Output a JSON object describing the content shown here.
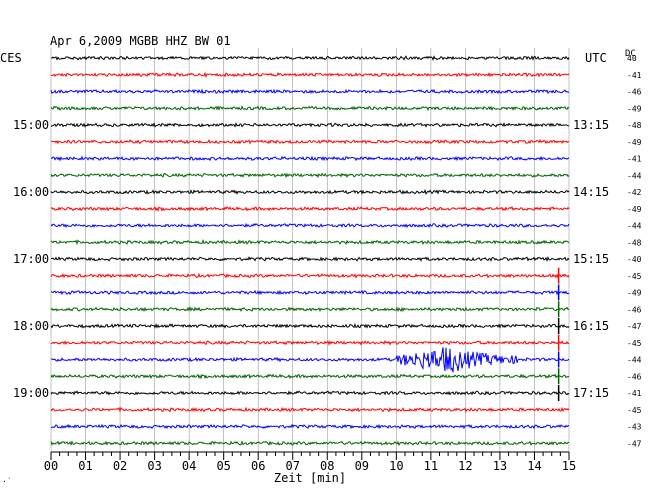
{
  "header": {
    "title": "Apr 6,2009   MGBB HHZ BW 01",
    "left_zone": "CES",
    "right_zone": "UTC",
    "offset_label": "DC"
  },
  "footer": {
    "x_title": "Zeit [min]",
    "corner_mark": "·˙"
  },
  "colors": {
    "trace_cycle": [
      "#000000",
      "#ff0000",
      "#0000ff",
      "#006400"
    ],
    "grid": "#999999"
  },
  "chart_data": {
    "type": "line",
    "title": "Apr 6,2009   MGBB HHZ BW 01",
    "xlabel": "Zeit [min]",
    "ylabel": "",
    "xlim": [
      0,
      15
    ],
    "x_ticks": [
      "00",
      "01",
      "02",
      "03",
      "04",
      "05",
      "06",
      "07",
      "08",
      "09",
      "10",
      "11",
      "12",
      "13",
      "14",
      "15"
    ],
    "minor_ticks_per_minute": 4,
    "line_count": 24,
    "minutes_per_line": 15,
    "left_time_labels": [
      {
        "line": 4,
        "label": "15:00"
      },
      {
        "line": 8,
        "label": "16:00"
      },
      {
        "line": 12,
        "label": "17:00"
      },
      {
        "line": 16,
        "label": "18:00"
      },
      {
        "line": 20,
        "label": "19:00"
      }
    ],
    "right_time_labels": [
      {
        "line": 4,
        "label": "13:15"
      },
      {
        "line": 8,
        "label": "14:15"
      },
      {
        "line": 12,
        "label": "15:15"
      },
      {
        "line": 16,
        "label": "16:15"
      },
      {
        "line": 20,
        "label": "17:15"
      }
    ],
    "dc_offsets": [
      "40",
      "-41",
      "-46",
      "-49",
      "-48",
      "-49",
      "-41",
      "-44",
      "-42",
      "-49",
      "-44",
      "-48",
      "-40",
      "-45",
      "-49",
      "-46",
      "-47",
      "-45",
      "-44",
      "-46",
      "-41",
      "-45",
      "-43",
      "-47"
    ],
    "events": [
      {
        "line": 13,
        "minute": 14.7,
        "note": "spike"
      },
      {
        "line": 14,
        "minute": 14.7,
        "note": "spike"
      },
      {
        "line": 15,
        "minute": 14.7,
        "note": "spike"
      },
      {
        "line": 16,
        "minute": 14.7,
        "note": "spike"
      },
      {
        "line": 17,
        "minute": 14.7,
        "note": "spike"
      },
      {
        "line": 18,
        "minute": 14.7,
        "note": "spike"
      },
      {
        "line": 18,
        "start": 10.0,
        "peak": 11.5,
        "end": 13.5,
        "note": "earthquake"
      },
      {
        "line": 19,
        "minute": 14.7,
        "note": "spike"
      },
      {
        "line": 20,
        "minute": 14.7,
        "note": "spike"
      }
    ]
  }
}
